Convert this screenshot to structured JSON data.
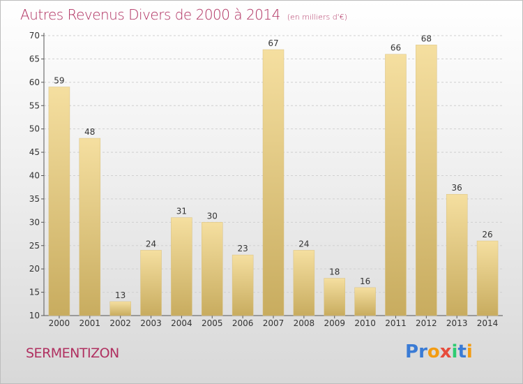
{
  "title": "Autres Revenus Divers de 2000 à 2014",
  "subtitle": "(en milliers d'€)",
  "commune": "SERMENTIZON",
  "logo": {
    "letters": [
      "P",
      "r",
      "o",
      "x",
      "i",
      "t",
      "i"
    ],
    "colors": [
      "#3a7bd5",
      "#3a7bd5",
      "#f39c12",
      "#e74c3c",
      "#2ecc71",
      "#3a7bd5",
      "#f39c12"
    ]
  },
  "chart_data": {
    "type": "bar",
    "categories": [
      "2000",
      "2001",
      "2002",
      "2003",
      "2004",
      "2005",
      "2006",
      "2007",
      "2008",
      "2009",
      "2010",
      "2011",
      "2012",
      "2013",
      "2014"
    ],
    "values": [
      59,
      48,
      13,
      24,
      31,
      30,
      23,
      67,
      24,
      18,
      16,
      66,
      68,
      36,
      26
    ],
    "ylim": [
      10,
      70
    ],
    "yticks": [
      10,
      15,
      20,
      25,
      30,
      35,
      40,
      45,
      50,
      55,
      60,
      65,
      70
    ],
    "grid": true,
    "bar_color_light": "#f5dfa0",
    "bar_color_dark": "#c8ac5f"
  }
}
